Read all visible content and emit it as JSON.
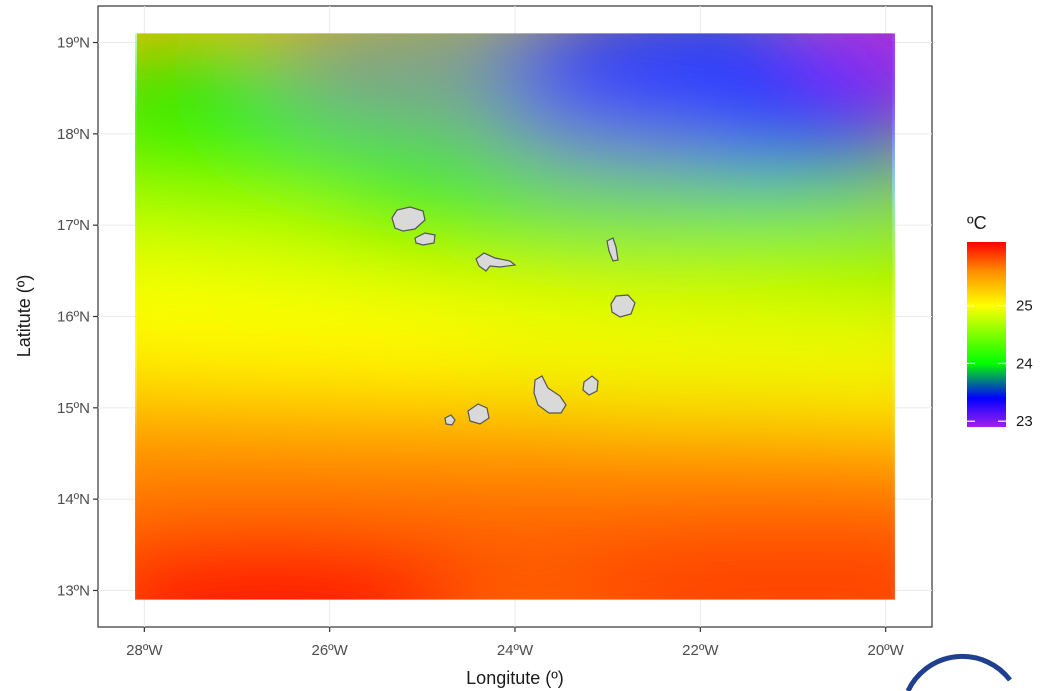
{
  "map": {
    "xlabel": "Longitute (º)",
    "ylabel": "Latitute (º)",
    "x_ticks": [
      {
        "value": -28,
        "label": "28ºW"
      },
      {
        "value": -26,
        "label": "26ºW"
      },
      {
        "value": -24,
        "label": "24ºW"
      },
      {
        "value": -22,
        "label": "22ºW"
      },
      {
        "value": -20,
        "label": "20ºW"
      }
    ],
    "y_ticks": [
      {
        "value": 13,
        "label": "13ºN"
      },
      {
        "value": 14,
        "label": "14ºN"
      },
      {
        "value": 15,
        "label": "15ºN"
      },
      {
        "value": 16,
        "label": "16ºN"
      },
      {
        "value": 17,
        "label": "17ºN"
      },
      {
        "value": 18,
        "label": "18ºN"
      },
      {
        "value": 19,
        "label": "19ºN"
      }
    ],
    "xlim": [
      -28.5,
      -19.5
    ],
    "ylim": [
      12.6,
      19.4
    ],
    "raster_extent": {
      "lon": [
        -28.1,
        -19.9
      ],
      "lat": [
        12.9,
        19.1
      ]
    },
    "grid": true
  },
  "legend": {
    "title": "ºC",
    "range": [
      22.9,
      26.1
    ],
    "ticks": [
      {
        "value": 25,
        "label": "25"
      },
      {
        "value": 24,
        "label": "24"
      },
      {
        "value": 23,
        "label": "23"
      }
    ],
    "colors": [
      "#a020f0",
      "#0000ff",
      "#00ff00",
      "#ffff00",
      "#ff8c00",
      "#ff0000"
    ],
    "color_stops": [
      22.9,
      23.4,
      24.0,
      25.0,
      25.6,
      26.1
    ]
  },
  "colors": {
    "land": "#d9d9d9",
    "coast": "#555555",
    "panel_border": "#333333",
    "grid": "#ebebeb"
  }
}
